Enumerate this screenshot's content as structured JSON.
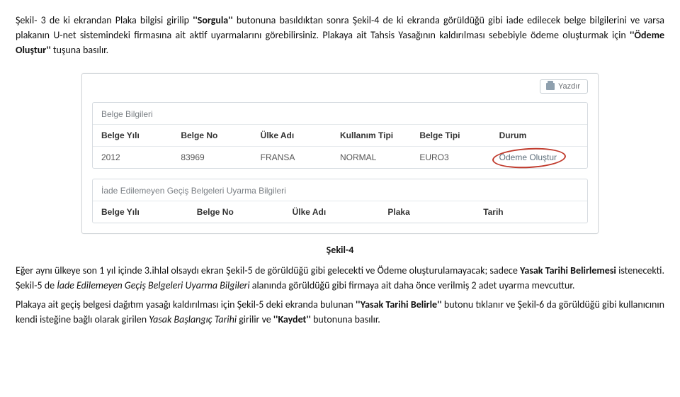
{
  "intro": {
    "p1_parts": [
      {
        "t": "Şekil- 3 de ki ekrandan  Plaka bilgisi girilip ",
        "b": false,
        "i": false
      },
      {
        "t": "''Sorgula''",
        "b": true,
        "i": false
      },
      {
        "t": " butonuna basıldıktan  sonra Şekil-4 de ki ekranda görüldüğü gibi iade edilecek belge bilgilerini ve varsa plakanın U-net  sistemindeki firmasına ait aktif  uyarmalarını görebilirsiniz. Plakaya ait Tahsis Yasağının kaldırılması sebebiyle  ödeme oluşturmak için ",
        "b": false,
        "i": false
      },
      {
        "t": "''Ödeme Oluştur''",
        "b": true,
        "i": false
      },
      {
        "t": " tuşuna basılır.",
        "b": false,
        "i": false
      }
    ]
  },
  "screenshot": {
    "print_label": "Yazdır",
    "panel_a": {
      "title": "Belge Bilgileri",
      "headers": [
        "Belge Yılı",
        "Belge No",
        "Ülke Adı",
        "Kullanım Tipi",
        "Belge Tipi",
        "Durum"
      ],
      "row": [
        "2012",
        "83969",
        "FRANSA",
        "NORMAL",
        "EURO3",
        "Ödeme Oluştur"
      ]
    },
    "panel_b": {
      "title": "İade Edilemeyen Geçiş Belgeleri Uyarma Bilgileri",
      "headers": [
        "Belge Yılı",
        "Belge No",
        "Ülke Adı",
        "Plaka",
        "Tarih"
      ]
    }
  },
  "caption": "Şekil-4",
  "after": {
    "p2_parts": [
      {
        "t": "   Eğer aynı ülkeye son 1 yıl içinde 3.ihlal olsaydı ekran Şekil-5 de görüldüğü  gibi gelecekti ve Ödeme oluşturulamayacak; sadece ",
        "b": false,
        "i": false
      },
      {
        "t": "Yasak Tarihi Belirlemesi",
        "b": true,
        "i": false
      },
      {
        "t": " istenecekti.  Şekil-5 de ",
        "b": false,
        "i": false
      },
      {
        "t": "İade Edilemeyen Geçiş Belgeleri Uyarma Bilgileri",
        "b": false,
        "i": true
      },
      {
        "t": " alanında görüldüğü gibi firmaya ait daha önce verilmiş  2 adet uyarma mevcuttur.",
        "b": false,
        "i": false
      }
    ],
    "p3_parts": [
      {
        "t": "   Plakaya ait geçiş belgesi dağıtım yasağı kaldırılması için Şekil-5 deki ekranda bulunan ",
        "b": false,
        "i": false
      },
      {
        "t": "''Yasak Tarihi Belirle''",
        "b": true,
        "i": false
      },
      {
        "t": " butonu tıklanır ve  Şekil-6 da görüldüğü gibi  kullanıcının kendi isteğine bağlı olarak girilen ",
        "b": false,
        "i": false
      },
      {
        "t": "Yasak Başlangıç Tarihi",
        "b": false,
        "i": true
      },
      {
        "t": " girilir ve  ",
        "b": false,
        "i": false
      },
      {
        "t": "''Kaydet''",
        "b": true,
        "i": false
      },
      {
        "t": " butonuna basılır.",
        "b": false,
        "i": false
      }
    ]
  }
}
